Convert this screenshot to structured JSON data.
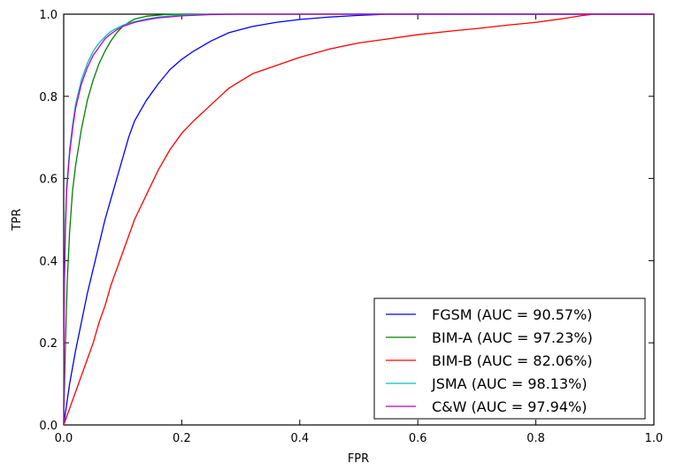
{
  "chart_data": {
    "type": "line",
    "title": "",
    "xlabel": "FPR",
    "ylabel": "TPR",
    "xlim": [
      0.0,
      1.0
    ],
    "ylim": [
      0.0,
      1.0
    ],
    "xticks": [
      "0.0",
      "0.2",
      "0.4",
      "0.6",
      "0.8",
      "1.0"
    ],
    "yticks": [
      "0.0",
      "0.2",
      "0.4",
      "0.6",
      "0.8",
      "1.0"
    ],
    "grid": false,
    "legend_position": "lower-right",
    "series": [
      {
        "name": "FGSM (AUC = 90.57%)",
        "color": "#0000ff",
        "points": [
          [
            0,
            0
          ],
          [
            0.005,
            0.05
          ],
          [
            0.01,
            0.1
          ],
          [
            0.02,
            0.18
          ],
          [
            0.03,
            0.25
          ],
          [
            0.04,
            0.32
          ],
          [
            0.05,
            0.38
          ],
          [
            0.06,
            0.44
          ],
          [
            0.07,
            0.5
          ],
          [
            0.08,
            0.55
          ],
          [
            0.09,
            0.6
          ],
          [
            0.1,
            0.65
          ],
          [
            0.11,
            0.7
          ],
          [
            0.12,
            0.74
          ],
          [
            0.14,
            0.79
          ],
          [
            0.16,
            0.83
          ],
          [
            0.18,
            0.865
          ],
          [
            0.2,
            0.89
          ],
          [
            0.22,
            0.91
          ],
          [
            0.25,
            0.935
          ],
          [
            0.28,
            0.955
          ],
          [
            0.32,
            0.97
          ],
          [
            0.36,
            0.98
          ],
          [
            0.4,
            0.987
          ],
          [
            0.45,
            0.993
          ],
          [
            0.5,
            0.997
          ],
          [
            0.55,
            1.0
          ],
          [
            1.0,
            1.0
          ]
        ]
      },
      {
        "name": "BIM-A (AUC = 97.23%)",
        "color": "#008000",
        "points": [
          [
            0,
            0
          ],
          [
            0.003,
            0.2
          ],
          [
            0.006,
            0.35
          ],
          [
            0.01,
            0.47
          ],
          [
            0.015,
            0.57
          ],
          [
            0.02,
            0.63
          ],
          [
            0.03,
            0.72
          ],
          [
            0.04,
            0.79
          ],
          [
            0.05,
            0.84
          ],
          [
            0.06,
            0.88
          ],
          [
            0.07,
            0.91
          ],
          [
            0.08,
            0.935
          ],
          [
            0.09,
            0.955
          ],
          [
            0.1,
            0.97
          ],
          [
            0.11,
            0.98
          ],
          [
            0.12,
            0.988
          ],
          [
            0.14,
            0.995
          ],
          [
            0.17,
            0.999
          ],
          [
            0.2,
            1.0
          ],
          [
            1.0,
            1.0
          ]
        ]
      },
      {
        "name": "BIM-B (AUC = 82.06%)",
        "color": "#ff0000",
        "points": [
          [
            0,
            0
          ],
          [
            0.01,
            0.04
          ],
          [
            0.02,
            0.08
          ],
          [
            0.03,
            0.12
          ],
          [
            0.04,
            0.16
          ],
          [
            0.05,
            0.2
          ],
          [
            0.06,
            0.25
          ],
          [
            0.07,
            0.29
          ],
          [
            0.08,
            0.34
          ],
          [
            0.09,
            0.38
          ],
          [
            0.1,
            0.42
          ],
          [
            0.12,
            0.5
          ],
          [
            0.14,
            0.56
          ],
          [
            0.16,
            0.62
          ],
          [
            0.18,
            0.67
          ],
          [
            0.2,
            0.71
          ],
          [
            0.22,
            0.74
          ],
          [
            0.25,
            0.78
          ],
          [
            0.28,
            0.82
          ],
          [
            0.32,
            0.855
          ],
          [
            0.36,
            0.875
          ],
          [
            0.4,
            0.895
          ],
          [
            0.45,
            0.915
          ],
          [
            0.5,
            0.93
          ],
          [
            0.55,
            0.94
          ],
          [
            0.6,
            0.95
          ],
          [
            0.65,
            0.958
          ],
          [
            0.7,
            0.965
          ],
          [
            0.75,
            0.973
          ],
          [
            0.8,
            0.98
          ],
          [
            0.85,
            0.99
          ],
          [
            0.88,
            0.997
          ],
          [
            0.9,
            1.0
          ],
          [
            1.0,
            1.0
          ]
        ]
      },
      {
        "name": "JSMA (AUC = 98.13%)",
        "color": "#00bfbf",
        "points": [
          [
            0,
            0
          ],
          [
            0.001,
            0.35
          ],
          [
            0.003,
            0.5
          ],
          [
            0.005,
            0.58
          ],
          [
            0.01,
            0.67
          ],
          [
            0.015,
            0.73
          ],
          [
            0.02,
            0.78
          ],
          [
            0.03,
            0.84
          ],
          [
            0.04,
            0.88
          ],
          [
            0.05,
            0.91
          ],
          [
            0.06,
            0.93
          ],
          [
            0.07,
            0.945
          ],
          [
            0.08,
            0.958
          ],
          [
            0.09,
            0.966
          ],
          [
            0.1,
            0.973
          ],
          [
            0.12,
            0.982
          ],
          [
            0.14,
            0.988
          ],
          [
            0.16,
            0.993
          ],
          [
            0.2,
            0.998
          ],
          [
            0.25,
            1.0
          ],
          [
            1.0,
            1.0
          ]
        ]
      },
      {
        "name": "C&W (AUC = 97.94%)",
        "color": "#bf00bf",
        "points": [
          [
            0,
            0
          ],
          [
            0.001,
            0.32
          ],
          [
            0.003,
            0.48
          ],
          [
            0.005,
            0.57
          ],
          [
            0.01,
            0.66
          ],
          [
            0.015,
            0.72
          ],
          [
            0.02,
            0.77
          ],
          [
            0.03,
            0.83
          ],
          [
            0.04,
            0.87
          ],
          [
            0.05,
            0.9
          ],
          [
            0.06,
            0.92
          ],
          [
            0.07,
            0.94
          ],
          [
            0.08,
            0.952
          ],
          [
            0.09,
            0.962
          ],
          [
            0.1,
            0.97
          ],
          [
            0.12,
            0.98
          ],
          [
            0.14,
            0.986
          ],
          [
            0.16,
            0.991
          ],
          [
            0.2,
            0.996
          ],
          [
            0.25,
            0.999
          ],
          [
            0.3,
            1.0
          ],
          [
            1.0,
            1.0
          ]
        ]
      }
    ]
  }
}
